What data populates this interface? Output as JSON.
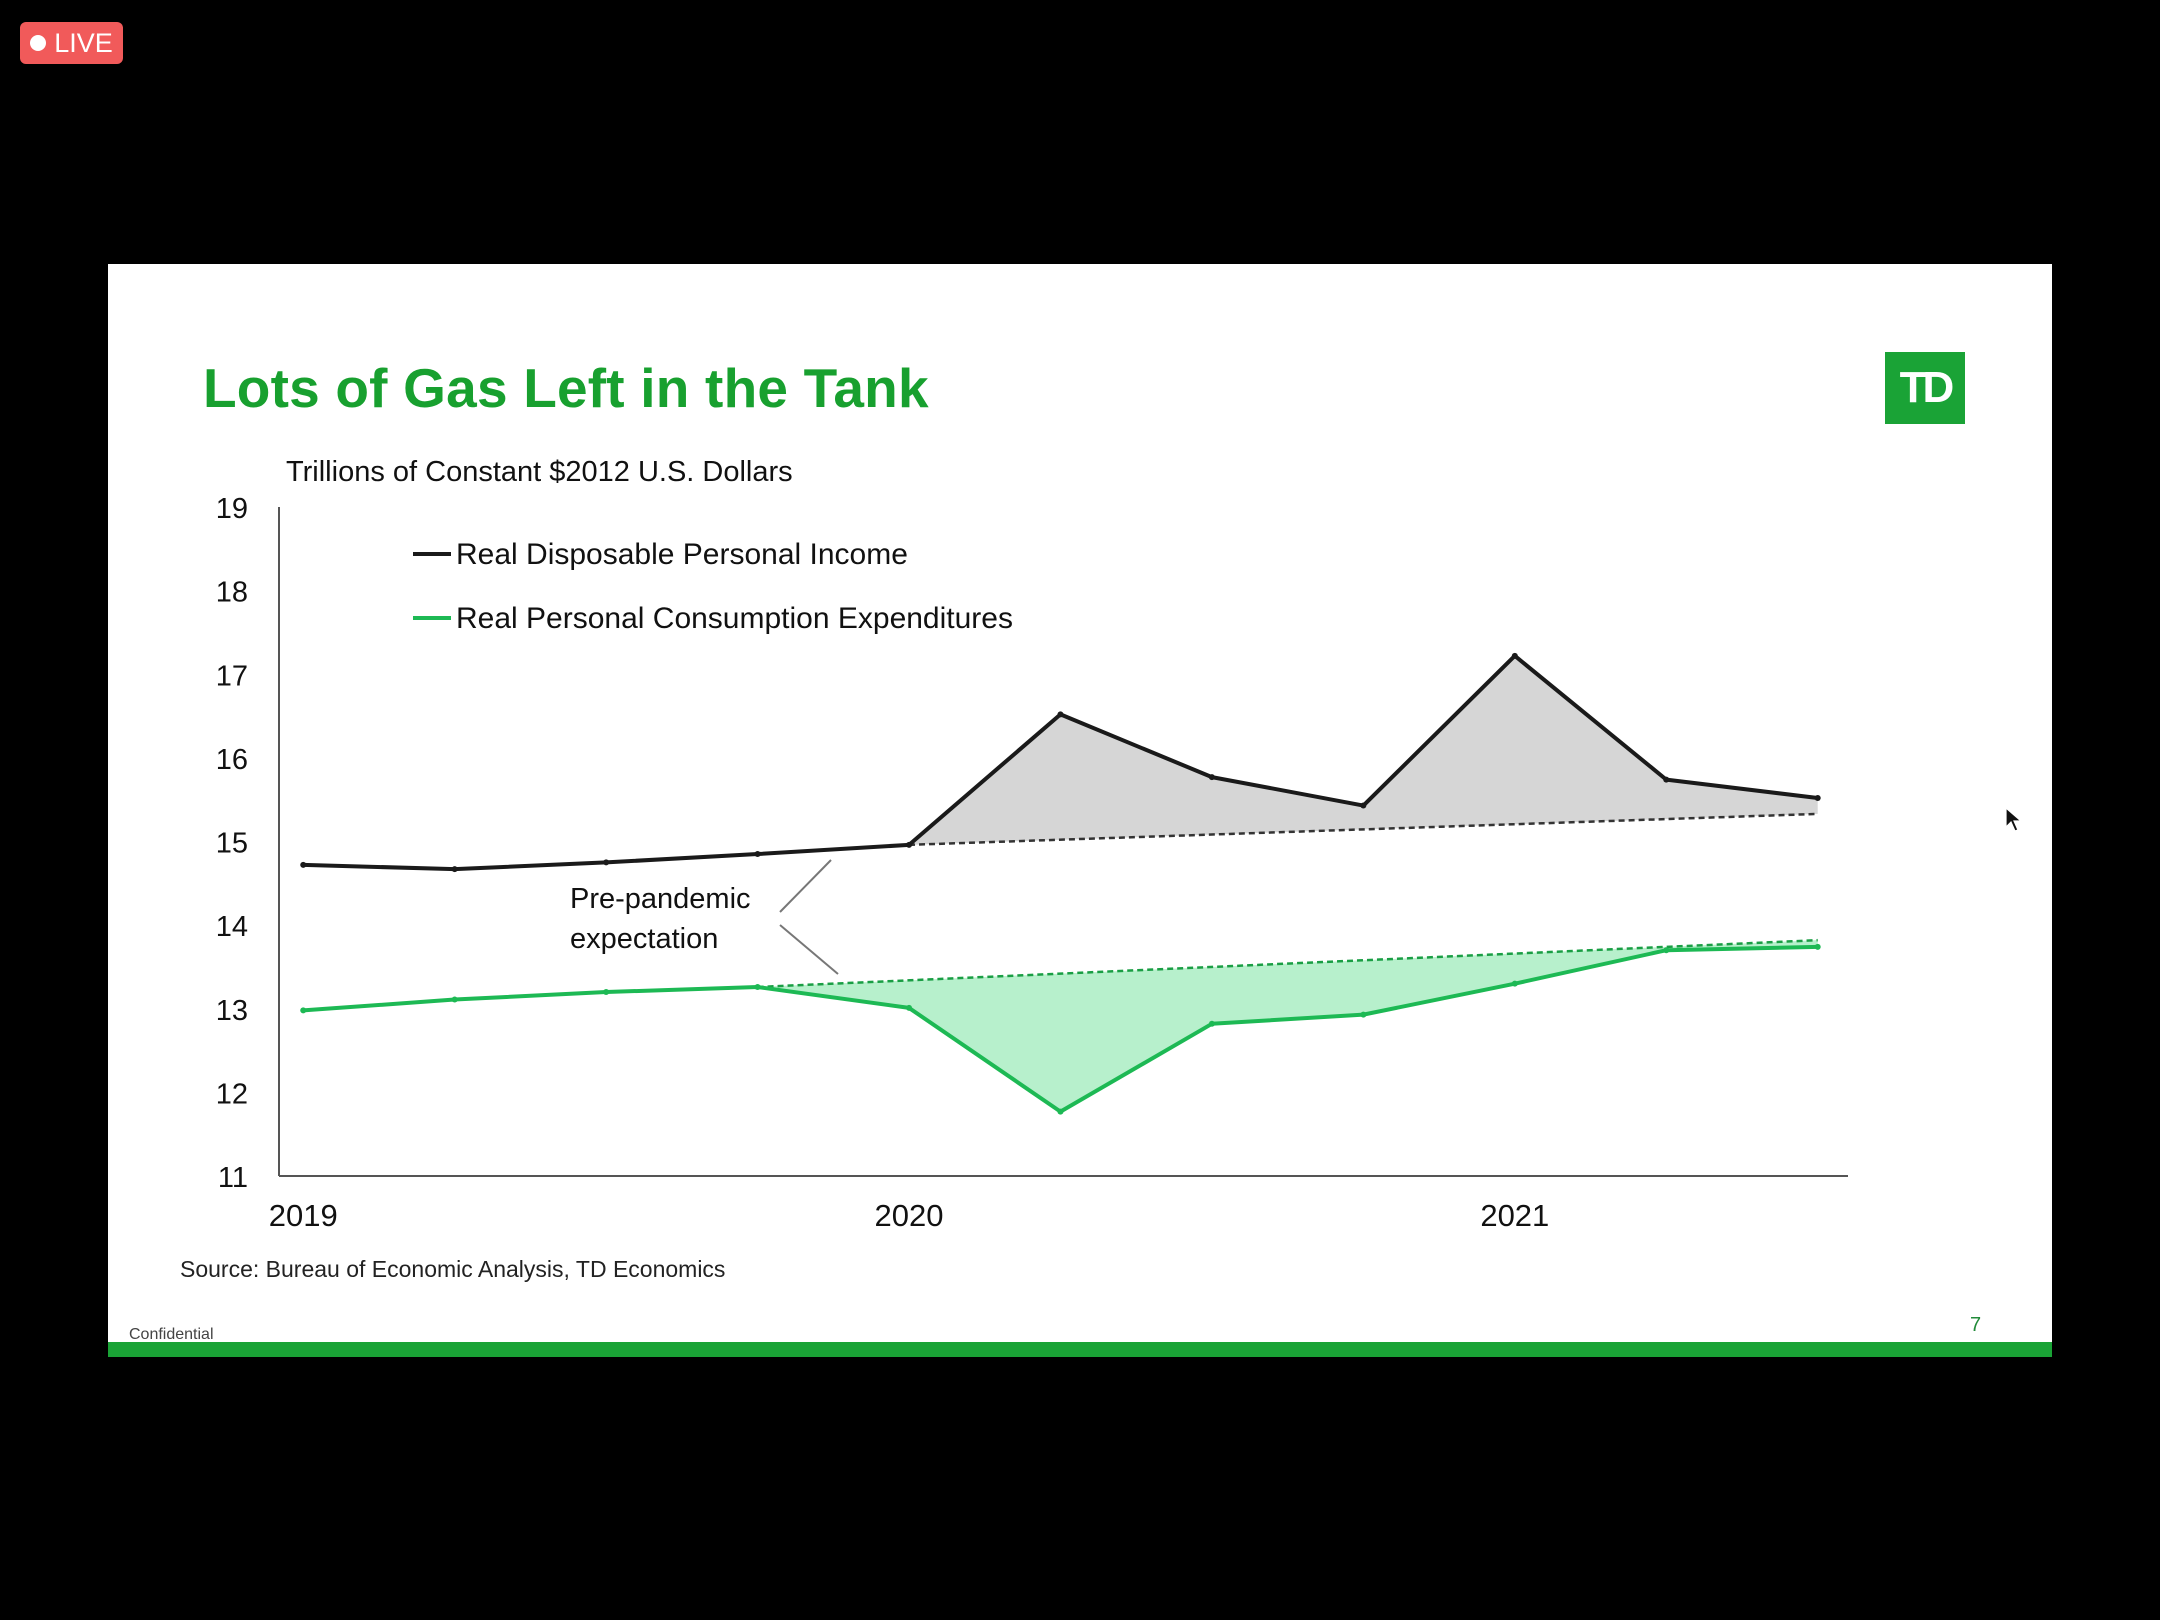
{
  "live_badge": {
    "label": "LIVE"
  },
  "slide": {
    "title": "Lots of Gas Left in the Tank",
    "logo_text": "TD",
    "source": "Source: Bureau of Economic Analysis, TD Economics",
    "confidential": "Confidential",
    "page_number": "7"
  },
  "colors": {
    "brand_green": "#1aa336",
    "pce_line": "#1db954",
    "pce_fill": "#b7f0cc",
    "income_line": "#1a1a1a",
    "income_fill": "#d6d6d6",
    "live_red": "#f15a5a"
  },
  "chart_data": {
    "type": "line",
    "title": "",
    "ylabel": "Trillions of Constant $2012 U.S. Dollars",
    "ylim": [
      11,
      19
    ],
    "yticks": [
      11,
      12,
      13,
      14,
      15,
      16,
      17,
      18,
      19
    ],
    "x": [
      2019.0,
      2019.25,
      2019.5,
      2019.75,
      2020.0,
      2020.25,
      2020.5,
      2020.75,
      2021.0,
      2021.25,
      2021.5
    ],
    "xlim": [
      2018.96,
      2021.55
    ],
    "xticks": [
      "2019",
      "2020",
      "2021"
    ],
    "xtick_values": [
      2019,
      2020,
      2021
    ],
    "series": [
      {
        "name": "Real Disposable Personal Income",
        "color": "#1a1a1a",
        "values": [
          14.72,
          14.67,
          14.75,
          14.85,
          14.96,
          16.52,
          15.77,
          15.43,
          17.22,
          15.74,
          15.52
        ]
      },
      {
        "name": "Real Personal Consumption Expenditures",
        "color": "#1db954",
        "values": [
          12.98,
          13.11,
          13.2,
          13.26,
          13.01,
          11.77,
          12.82,
          12.93,
          13.3,
          13.7,
          13.74
        ]
      }
    ],
    "trends": [
      {
        "label": "Pre-pandemic expectation",
        "series": "Real Disposable Personal Income",
        "from": [
          2020.0,
          14.96
        ],
        "to": [
          2021.5,
          15.33
        ]
      },
      {
        "label": "Pre-pandemic expectation",
        "series": "Real Personal Consumption Expenditures",
        "from": [
          2019.75,
          13.26
        ],
        "to": [
          2021.5,
          13.82
        ]
      }
    ],
    "annotation": "Pre-pandemic\nexpectation",
    "annotation_lines": [
      "Pre-pandemic",
      "expectation"
    ],
    "legend_position": "top-left",
    "grid": false
  }
}
